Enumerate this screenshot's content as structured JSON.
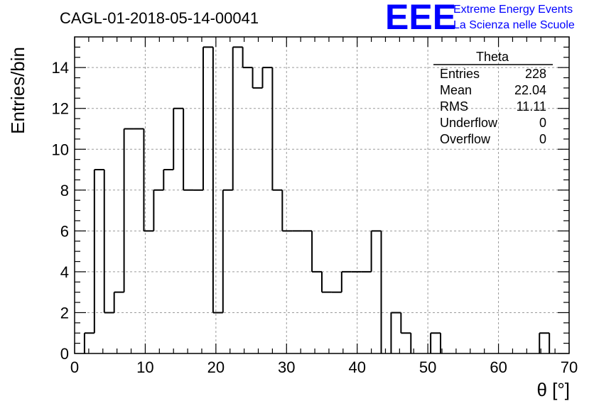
{
  "chart_data": {
    "type": "bar",
    "title": "CAGL-01-2018-05-14-00041",
    "xlabel": "θ [°]",
    "ylabel": "Entries/bin",
    "xlim": [
      0,
      70
    ],
    "ylim": [
      0,
      15.5
    ],
    "x_ticks": [
      "0",
      "10",
      "20",
      "30",
      "40",
      "50",
      "60",
      "70"
    ],
    "y_ticks": [
      "0",
      "2",
      "4",
      "6",
      "8",
      "10",
      "12",
      "14"
    ],
    "grid": true,
    "bin_edges": [
      0,
      1.4,
      2.8,
      4.2,
      5.6,
      7.0,
      8.4,
      9.8,
      11.2,
      12.6,
      14.0,
      15.4,
      16.8,
      18.2,
      19.6,
      21.0,
      22.4,
      23.8,
      25.2,
      26.6,
      28.0,
      29.4,
      30.8,
      32.2,
      33.6,
      35.0,
      36.4,
      37.8,
      39.2,
      40.6,
      42.0,
      43.4,
      44.8,
      46.2,
      47.6,
      49.0,
      50.4,
      51.8,
      53.2,
      54.6,
      56.0,
      57.4,
      58.8,
      60.2,
      61.6,
      63.0,
      64.4,
      65.8,
      67.2,
      68.6,
      70.0
    ],
    "values": [
      0,
      1,
      9,
      2,
      3,
      11,
      11,
      6,
      8,
      9,
      12,
      8,
      8,
      15,
      2,
      8,
      15,
      14,
      13,
      14,
      8,
      6,
      6,
      6,
      4,
      3,
      3,
      4,
      4,
      4,
      6,
      0,
      2,
      1,
      0,
      0,
      1,
      0,
      0,
      0,
      0,
      0,
      0,
      0,
      0,
      0,
      0,
      1,
      0,
      0
    ]
  },
  "stats_box": {
    "title": "Theta",
    "rows": [
      {
        "label": "Entries",
        "value": "228"
      },
      {
        "label": "Mean",
        "value": "22.04"
      },
      {
        "label": "RMS",
        "value": "11.11"
      },
      {
        "label": "Underflow",
        "value": "0"
      },
      {
        "label": "Overflow",
        "value": "0"
      }
    ]
  },
  "logo": {
    "letters": "EEE",
    "line1": "Extreme Energy Events",
    "line2": "La Scienza nelle Scuole",
    "color": "#0000ff"
  },
  "colors": {
    "histogram": "#000000",
    "grid": "#9a9a9a"
  }
}
